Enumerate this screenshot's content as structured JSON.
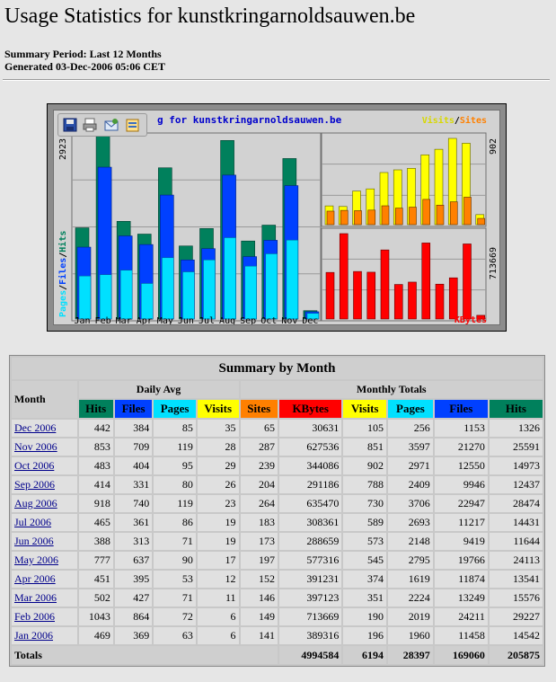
{
  "page": {
    "title": "Usage Statistics for kunstkringarnoldsauwen.be",
    "summary_period": "Summary Period: Last 12 Months",
    "generated": "Generated 03-Dec-2006 05:06 CET"
  },
  "toolbar": {
    "icons": [
      "save-icon",
      "print-icon",
      "email-icon",
      "edit-icon"
    ]
  },
  "chart": {
    "title": "g for kunstkringarnoldsauwen.be",
    "left_axis_max": "2923",
    "legend_left": [
      "Pages",
      "/",
      "Files",
      "/",
      "Hits"
    ],
    "legend_right_top": [
      "Visits",
      "/",
      "Sites"
    ],
    "right_top_axis_max": "902",
    "right_bottom_axis_max": "713669",
    "right_bottom_legend": "KBytes",
    "colors": {
      "hits": "#00805c",
      "files": "#0040ff",
      "pages": "#00e0ff",
      "visits": "#ffff00",
      "sites": "#ff8000",
      "kbytes": "#ff0000"
    }
  },
  "chart_data": {
    "type": "bar",
    "categories": [
      "Jan",
      "Feb",
      "Mar",
      "Apr",
      "May",
      "Jun",
      "Jul",
      "Aug",
      "Sep",
      "Oct",
      "Nov",
      "Dec"
    ],
    "series": [
      {
        "name": "Hits",
        "values": [
          14542,
          29227,
          15576,
          13541,
          24113,
          11644,
          14431,
          28474,
          12437,
          14973,
          25591,
          1326
        ]
      },
      {
        "name": "Files",
        "values": [
          11458,
          24211,
          13249,
          11874,
          19766,
          9419,
          11217,
          22947,
          9946,
          12550,
          21270,
          1153
        ]
      },
      {
        "name": "Pages",
        "values": [
          1960,
          2019,
          2224,
          1619,
          2795,
          2148,
          2693,
          3706,
          2409,
          2971,
          3597,
          256
        ]
      },
      {
        "name": "Visits",
        "values": [
          196,
          190,
          351,
          374,
          545,
          573,
          589,
          730,
          788,
          902,
          851,
          105
        ]
      },
      {
        "name": "Sites",
        "values": [
          141,
          149,
          146,
          152,
          197,
          173,
          183,
          264,
          204,
          239,
          287,
          65
        ]
      },
      {
        "name": "KBytes",
        "values": [
          389316,
          713669,
          397123,
          391231,
          577316,
          288659,
          308361,
          635470,
          291186,
          344086,
          627536,
          30631
        ]
      }
    ]
  },
  "table": {
    "caption": "Summary by Month",
    "month_header": "Month",
    "daily_avg_header": "Daily Avg",
    "monthly_totals_header": "Monthly Totals",
    "daily_cols": [
      "Hits",
      "Files",
      "Pages",
      "Visits"
    ],
    "monthly_cols": [
      "Sites",
      "KBytes",
      "Visits",
      "Pages",
      "Files",
      "Hits"
    ],
    "rows": [
      {
        "month": "Dec 2006",
        "d_hits": "442",
        "d_files": "384",
        "d_pages": "85",
        "d_visits": "35",
        "sites": "65",
        "kbytes": "30631",
        "visits": "105",
        "pages": "256",
        "files": "1153",
        "hits": "1326"
      },
      {
        "month": "Nov 2006",
        "d_hits": "853",
        "d_files": "709",
        "d_pages": "119",
        "d_visits": "28",
        "sites": "287",
        "kbytes": "627536",
        "visits": "851",
        "pages": "3597",
        "files": "21270",
        "hits": "25591"
      },
      {
        "month": "Oct 2006",
        "d_hits": "483",
        "d_files": "404",
        "d_pages": "95",
        "d_visits": "29",
        "sites": "239",
        "kbytes": "344086",
        "visits": "902",
        "pages": "2971",
        "files": "12550",
        "hits": "14973"
      },
      {
        "month": "Sep 2006",
        "d_hits": "414",
        "d_files": "331",
        "d_pages": "80",
        "d_visits": "26",
        "sites": "204",
        "kbytes": "291186",
        "visits": "788",
        "pages": "2409",
        "files": "9946",
        "hits": "12437"
      },
      {
        "month": "Aug 2006",
        "d_hits": "918",
        "d_files": "740",
        "d_pages": "119",
        "d_visits": "23",
        "sites": "264",
        "kbytes": "635470",
        "visits": "730",
        "pages": "3706",
        "files": "22947",
        "hits": "28474"
      },
      {
        "month": "Jul 2006",
        "d_hits": "465",
        "d_files": "361",
        "d_pages": "86",
        "d_visits": "19",
        "sites": "183",
        "kbytes": "308361",
        "visits": "589",
        "pages": "2693",
        "files": "11217",
        "hits": "14431"
      },
      {
        "month": "Jun 2006",
        "d_hits": "388",
        "d_files": "313",
        "d_pages": "71",
        "d_visits": "19",
        "sites": "173",
        "kbytes": "288659",
        "visits": "573",
        "pages": "2148",
        "files": "9419",
        "hits": "11644"
      },
      {
        "month": "May 2006",
        "d_hits": "777",
        "d_files": "637",
        "d_pages": "90",
        "d_visits": "17",
        "sites": "197",
        "kbytes": "577316",
        "visits": "545",
        "pages": "2795",
        "files": "19766",
        "hits": "24113"
      },
      {
        "month": "Apr 2006",
        "d_hits": "451",
        "d_files": "395",
        "d_pages": "53",
        "d_visits": "12",
        "sites": "152",
        "kbytes": "391231",
        "visits": "374",
        "pages": "1619",
        "files": "11874",
        "hits": "13541"
      },
      {
        "month": "Mar 2006",
        "d_hits": "502",
        "d_files": "427",
        "d_pages": "71",
        "d_visits": "11",
        "sites": "146",
        "kbytes": "397123",
        "visits": "351",
        "pages": "2224",
        "files": "13249",
        "hits": "15576"
      },
      {
        "month": "Feb 2006",
        "d_hits": "1043",
        "d_files": "864",
        "d_pages": "72",
        "d_visits": "6",
        "sites": "149",
        "kbytes": "713669",
        "visits": "190",
        "pages": "2019",
        "files": "24211",
        "hits": "29227"
      },
      {
        "month": "Jan 2006",
        "d_hits": "469",
        "d_files": "369",
        "d_pages": "63",
        "d_visits": "6",
        "sites": "141",
        "kbytes": "389316",
        "visits": "196",
        "pages": "1960",
        "files": "11458",
        "hits": "14542"
      }
    ],
    "totals": {
      "label": "Totals",
      "kbytes": "4994584",
      "visits": "6194",
      "pages": "28397",
      "files": "169060",
      "hits": "205875"
    }
  }
}
